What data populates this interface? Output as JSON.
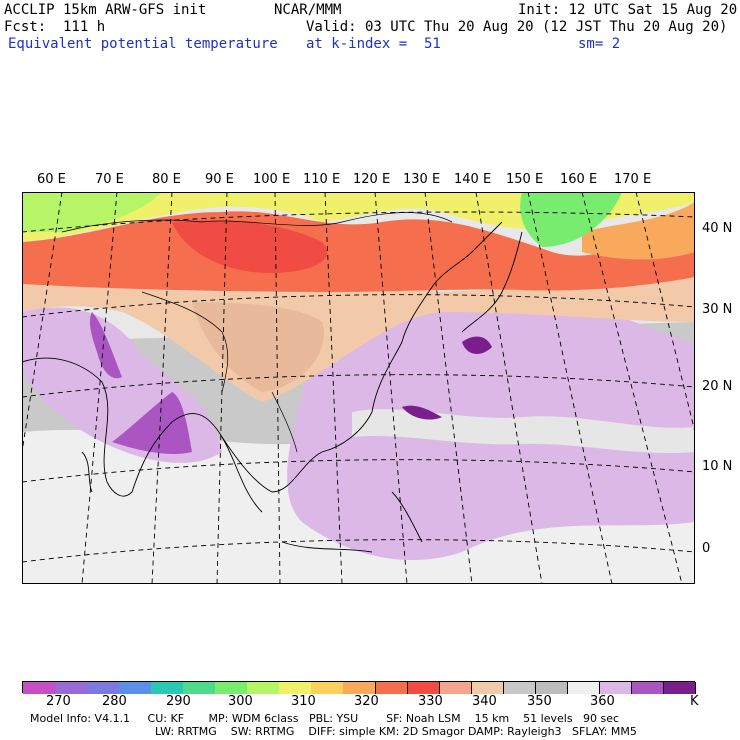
{
  "header": {
    "line1_left": "ACCLIP 15km ARW-GFS init",
    "line1_center": "NCAR/MMM",
    "line1_right": "Init: 12 UTC Sat 15 Aug 20",
    "line2_left": "Fcst:  111 h",
    "line2_right": "Valid: 03 UTC Thu 20 Aug 20 (12 JST Thu 20 Aug 20)",
    "line3_left": "Equivalent potential temperature",
    "line3_center": "at k-index =  51",
    "line3_right": "sm= 2"
  },
  "lon_labels": [
    "60 E",
    "70 E",
    "80 E",
    "90 E",
    "100 E",
    "110 E",
    "120 E",
    "130 E",
    "140 E",
    "150 E",
    "160 E",
    "170 E"
  ],
  "lat_labels": [
    "40 N",
    "30 N",
    "20 N",
    "10 N",
    "0"
  ],
  "colorbar": {
    "unit": "K",
    "tick_labels": [
      "270",
      "280",
      "290",
      "300",
      "310",
      "320",
      "330",
      "340",
      "350",
      "360"
    ],
    "colors": [
      "#c64fc6",
      "#9a6ad6",
      "#7d79e0",
      "#5e8fe8",
      "#2bc7b5",
      "#4fd98a",
      "#78ec6e",
      "#b6f567",
      "#f0f06a",
      "#fbd15e",
      "#f8a95c",
      "#f56f4e",
      "#f04c43",
      "#f3a58d",
      "#f2c9a9",
      "#c8c8c8",
      "#bcbcbc",
      "#f0f0f0",
      "#dbb8e6",
      "#aa55c2",
      "#7a1e8e"
    ]
  },
  "footer": {
    "line1": "Model Info: V4.1.1     CU: KF       MP: WDM 6class   PBL: YSU        SF: Noah LSM    15 km    51 levels   90 sec",
    "line2": "LW: RRTMG    SW: RRTMG    DIFF: simple KM: 2D Smagor DAMP: Rayleigh3   SFLAY: MM5"
  }
}
